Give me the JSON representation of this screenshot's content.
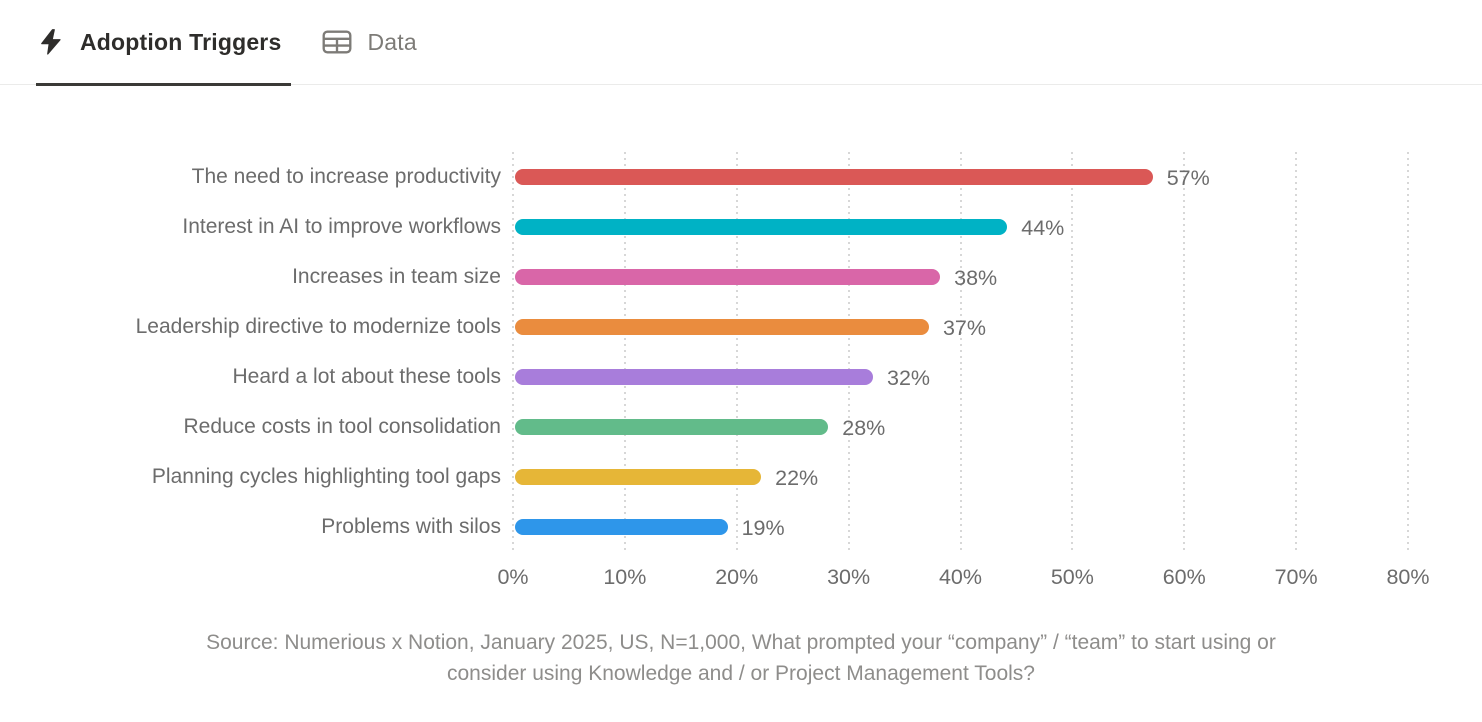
{
  "tabs": [
    {
      "label": "Adoption Triggers",
      "icon": "lightning-bolt-icon",
      "active": true
    },
    {
      "label": "Data",
      "icon": "table-icon",
      "active": false
    }
  ],
  "chart_data": {
    "type": "bar",
    "orientation": "horizontal",
    "title": "",
    "categories": [
      "The need to increase productivity",
      "Interest in AI to improve workflows",
      "Increases in team size",
      "Leadership directive to modernize tools",
      "Heard a lot about these tools",
      "Reduce costs in tool consolidation",
      "Planning cycles highlighting tool gaps",
      "Problems with silos"
    ],
    "values": [
      57,
      44,
      38,
      37,
      32,
      28,
      22,
      19
    ],
    "value_labels": [
      "57%",
      "44%",
      "38%",
      "37%",
      "32%",
      "28%",
      "22%",
      "19%"
    ],
    "bar_colors": [
      "#da5856",
      "#00b2c5",
      "#d966a8",
      "#ea8c3e",
      "#a87ddb",
      "#62bb8a",
      "#e6b637",
      "#2e96ea"
    ],
    "xticks": [
      "0%",
      "10%",
      "20%",
      "30%",
      "40%",
      "50%",
      "60%",
      "70%",
      "80%"
    ],
    "xtick_values": [
      0,
      10,
      20,
      30,
      40,
      50,
      60,
      70,
      80
    ],
    "xlim": [
      0,
      80
    ],
    "grid": "dotted-vertical",
    "legend": "none"
  },
  "source": {
    "lines": [
      "Source: Numerious x Notion, January 2025, US, N=1,000, What prompted your “company” / “team” to start using or",
      "consider using Knowledge and / or Project Management Tools?"
    ]
  },
  "colors": {
    "tab_active_text": "#2e2d2b",
    "tab_inactive_text": "#7d7b77",
    "tab_underline": "#3b3a37",
    "tabbar_border": "#ebebea",
    "label_text": "#6c6c6c",
    "source_text": "#8e8d8b",
    "gridline": "#d7d7d7",
    "background": "#ffffff"
  }
}
